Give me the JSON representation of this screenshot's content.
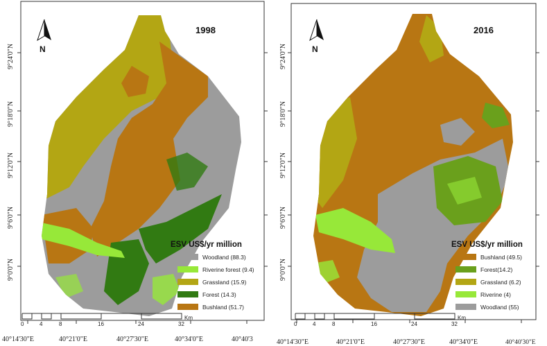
{
  "colors": {
    "woodland": "#9c9c9c",
    "riverine": "#97e839",
    "grassland": "#b3a614",
    "forest": "#317a12",
    "forest2016": "#6aa01c",
    "bushland": "#b87613"
  },
  "maps": [
    {
      "year": "1998",
      "north": "N",
      "legend_title": "ESV US$/yr million",
      "legend": [
        {
          "label": "Woodland (88.3)",
          "color": "#9c9c9c"
        },
        {
          "label": "Riverine forest (9.4)",
          "color": "#97e839"
        },
        {
          "label": "Grassland (15.9)",
          "color": "#b3a614"
        },
        {
          "label": "Forest (14.3)",
          "color": "#317a12"
        },
        {
          "label": "Bushland (51.7)",
          "color": "#b87613"
        }
      ],
      "lat_labels": [
        "9°24'0\"N",
        "9°18'0\"N",
        "9°12'0\"N",
        "9°6'0\"N",
        "9°0'0\"N"
      ],
      "lon_labels": [
        "40°14'30\"E",
        "40°21'0\"E",
        "40°27'30\"E",
        "40°34'0\"E",
        "40°40'3"
      ],
      "scale": {
        "ticks": [
          "0",
          "4",
          "8",
          "16",
          "24",
          "32"
        ],
        "unit": "Km"
      }
    },
    {
      "year": "2016",
      "north": "N",
      "legend_title": "ESV US$/yr million",
      "legend": [
        {
          "label": "Bushland (49.5)",
          "color": "#b87613"
        },
        {
          "label": "Forest(14.2)",
          "color": "#6aa01c"
        },
        {
          "label": "Grassland (6.2)",
          "color": "#b3a614"
        },
        {
          "label": "Riverine (4)",
          "color": "#97e839"
        },
        {
          "label": "Woodland (55)",
          "color": "#9c9c9c"
        }
      ],
      "lat_labels": [
        "9°24'0\"N",
        "9°18'0\"N",
        "9°12'0\"N",
        "9°6'0\"N",
        "9°0'0\"N"
      ],
      "lon_labels": [
        "40°14'30\"E",
        "40°21'0\"E",
        "40°27'30\"E",
        "40°34'0\"E",
        "40°40'30\"E"
      ],
      "scale": {
        "ticks": [
          "0",
          "4",
          "8",
          "16",
          "24",
          "32"
        ],
        "unit": "Km"
      }
    }
  ]
}
